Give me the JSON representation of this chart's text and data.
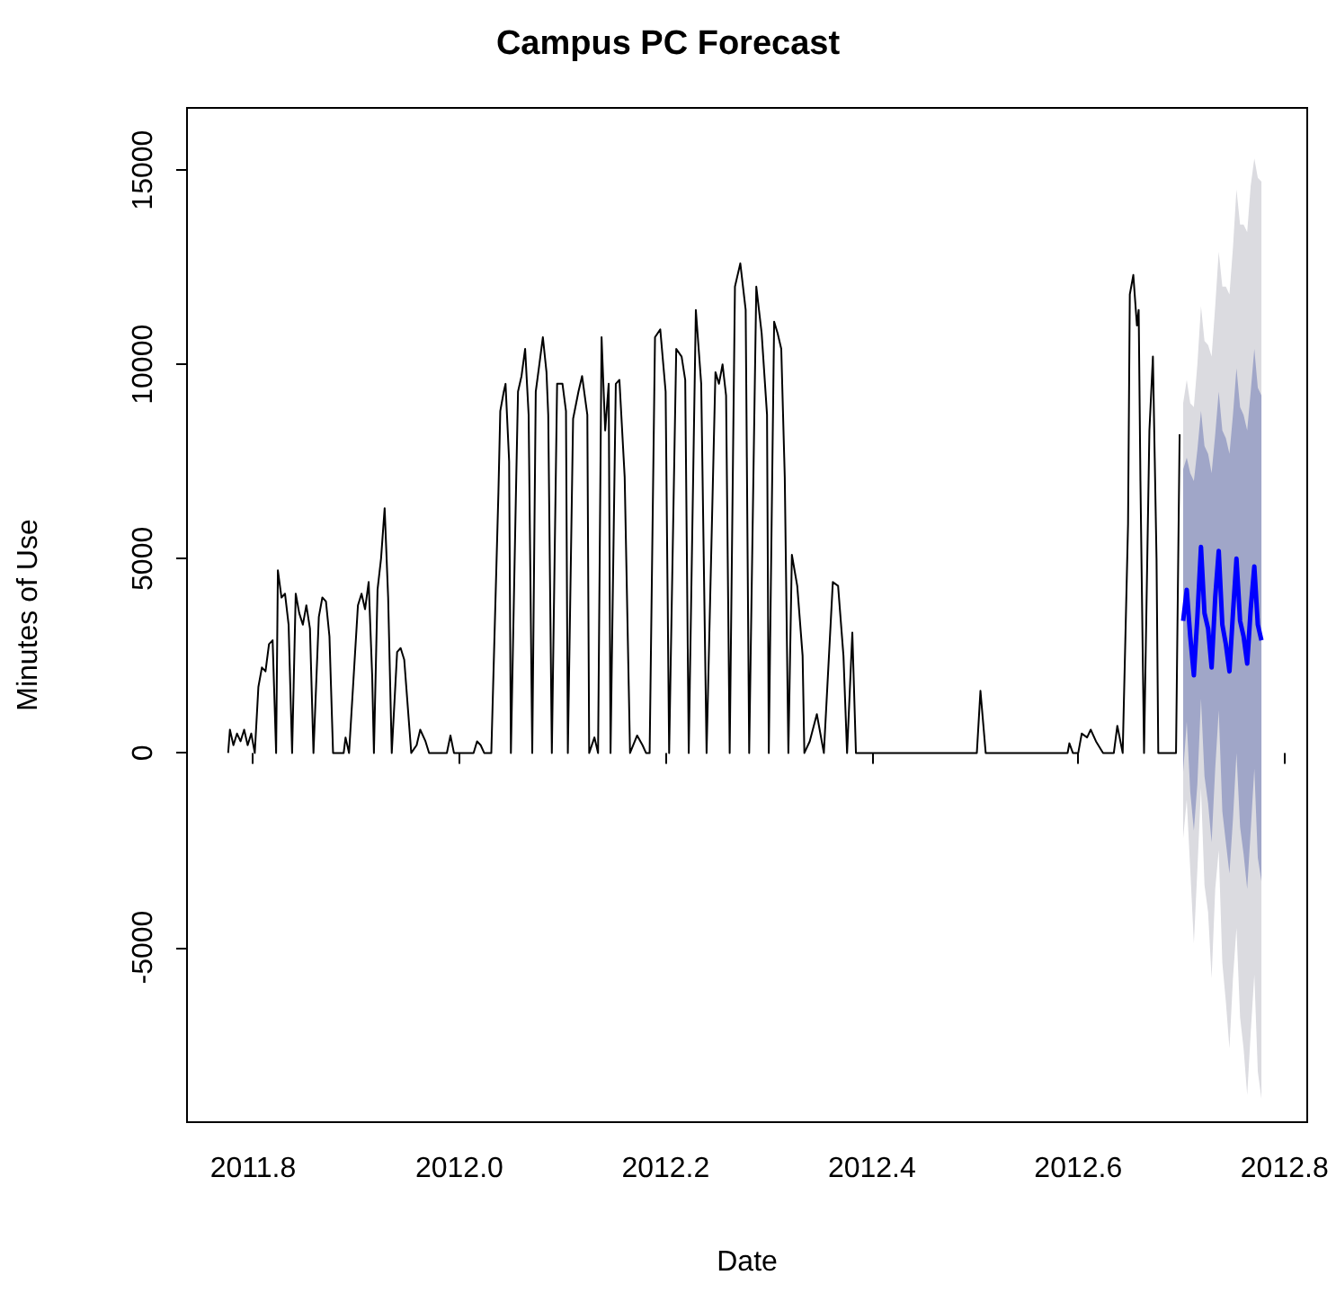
{
  "chart_data": {
    "type": "line",
    "title": "Campus PC Forecast",
    "xlabel": "Date",
    "ylabel": "Minutes of Use",
    "xlim": [
      2011.736,
      2012.822
    ],
    "ylim": [
      -9500,
      16600
    ],
    "xticks": [
      2011.8,
      {
        "value": 2012,
        "label": "2012.0"
      },
      2012.2,
      2012.4,
      2012.6,
      2012.8
    ],
    "yticks": [
      -5000,
      0,
      5000,
      10000,
      15000
    ],
    "grid": false,
    "marker": "none",
    "line_style": "solid",
    "series": [
      {
        "color": "#dbdbe0",
        "x": [
          2012.7017,
          2012.7052,
          2012.7086,
          2012.7121,
          2012.7155,
          2012.719,
          2012.7224,
          2012.7259,
          2012.7293,
          2012.7328,
          2012.7362,
          2012.7397,
          2012.7431,
          2012.7466,
          2012.75,
          2012.7534,
          2012.7569,
          2012.7603,
          2012.7638,
          2012.7672,
          2012.7707,
          2012.7741,
          2012.7776
        ],
        "values": [
          null,
          null,
          null,
          null,
          null,
          null,
          null,
          null,
          null,
          null,
          null,
          null,
          null,
          null,
          null,
          null,
          null,
          null,
          null,
          null,
          null,
          null,
          null
        ],
        "lower": [
          -2200,
          -1200,
          -3000,
          -4900,
          -3000,
          -900,
          -3400,
          -4100,
          -5800,
          -3500,
          -2500,
          -5400,
          -6400,
          -7600,
          -5800,
          -4500,
          -6800,
          -7600,
          -8800,
          -7200,
          -5700,
          -8200,
          -8900
        ],
        "upper": [
          9000,
          9600,
          9000,
          8900,
          10000,
          11500,
          10600,
          10500,
          10200,
          11500,
          12900,
          12000,
          12000,
          11800,
          13000,
          14500,
          13600,
          13600,
          13400,
          14600,
          15300,
          14800,
          14700
        ]
      },
      {
        "color": "#a0a6c8",
        "x": [
          2012.7017,
          2012.7052,
          2012.7086,
          2012.7121,
          2012.7155,
          2012.719,
          2012.7224,
          2012.7259,
          2012.7293,
          2012.7328,
          2012.7362,
          2012.7397,
          2012.7431,
          2012.7466,
          2012.75,
          2012.7534,
          2012.7569,
          2012.7603,
          2012.7638,
          2012.7672,
          2012.7707,
          2012.7741,
          2012.7776
        ],
        "values": [
          null,
          null,
          null,
          null,
          null,
          null,
          null,
          null,
          null,
          null,
          null,
          null,
          null,
          null,
          null,
          null,
          null,
          null,
          null,
          null,
          null,
          null,
          null
        ],
        "lower": [
          -500,
          800,
          -1000,
          -2000,
          -800,
          1400,
          -600,
          -1300,
          -2300,
          -400,
          1100,
          -1500,
          -2300,
          -3100,
          -1700,
          0,
          -1900,
          -2600,
          -3500,
          -2000,
          -400,
          -2700,
          -3300
        ],
        "upper": [
          7300,
          7600,
          7200,
          7000,
          7800,
          8800,
          7900,
          7700,
          7200,
          8200,
          9300,
          8300,
          8100,
          7700,
          8700,
          9900,
          8900,
          8700,
          8300,
          9300,
          10400,
          9400,
          9200
        ]
      },
      {
        "color": "#0000ff",
        "x": [
          2012.7017,
          2012.7052,
          2012.7086,
          2012.7121,
          2012.7155,
          2012.719,
          2012.7224,
          2012.7259,
          2012.7293,
          2012.7328,
          2012.7362,
          2012.7397,
          2012.7431,
          2012.7466,
          2012.75,
          2012.7534,
          2012.7569,
          2012.7603,
          2012.7638,
          2012.7672,
          2012.7707,
          2012.7741,
          2012.7776
        ],
        "values": [
          3400,
          4200,
          3000,
          2000,
          3500,
          5300,
          3600,
          3200,
          2200,
          4000,
          5200,
          3300,
          2800,
          2100,
          3600,
          5000,
          3400,
          3000,
          2300,
          3700,
          4800,
          3300,
          2900
        ]
      },
      {
        "color": "#000000",
        "x": [
          2011.7759,
          2011.7776,
          2011.781,
          2011.7845,
          2011.7879,
          2011.7914,
          2011.7948,
          2011.7983,
          2011.8017,
          2011.8052,
          2011.8086,
          2011.8121,
          2011.8155,
          2011.819,
          2011.8224,
          2011.8241,
          2011.8276,
          2011.831,
          2011.8345,
          2011.8379,
          2011.8414,
          2011.8448,
          2011.8483,
          2011.8517,
          2011.8552,
          2011.8586,
          2011.8638,
          2011.8672,
          2011.8707,
          2011.8741,
          2011.8776,
          2011.8879,
          2011.8897,
          2011.8931,
          2011.9017,
          2011.9052,
          2011.9086,
          2011.9121,
          2011.9155,
          2011.9172,
          2011.9207,
          2011.9241,
          2011.9276,
          2011.931,
          2011.9345,
          2011.9397,
          2011.9431,
          2011.9466,
          2011.95,
          2011.9534,
          2011.9586,
          2011.9621,
          2011.9672,
          2011.9707,
          2011.9879,
          2011.9914,
          2011.9948,
          2012.0138,
          2012.0172,
          2012.0207,
          2012.0241,
          2012.031,
          2012.0379,
          2012.0397,
          2012.0431,
          2012.0448,
          2012.0483,
          2012.05,
          2012.0552,
          2012.0569,
          2012.0603,
          2012.0638,
          2012.0672,
          2012.0707,
          2012.0741,
          2012.0776,
          2012.081,
          2012.0845,
          2012.0862,
          2012.0897,
          2012.0948,
          2012.1,
          2012.1034,
          2012.1052,
          2012.1103,
          2012.1155,
          2012.119,
          2012.1241,
          2012.1259,
          2012.131,
          2012.1345,
          2012.1379,
          2012.1414,
          2012.1448,
          2012.1466,
          2012.1517,
          2012.1552,
          2012.1603,
          2012.1655,
          2012.1724,
          2012.1776,
          2012.181,
          2012.1845,
          2012.1897,
          2012.1948,
          2012.2,
          2012.2034,
          2012.2103,
          2012.2155,
          2012.219,
          2012.2224,
          2012.2293,
          2012.2345,
          2012.2397,
          2012.2483,
          2012.2517,
          2012.2552,
          2012.2586,
          2012.2621,
          2012.2672,
          2012.2724,
          2012.2776,
          2012.281,
          2012.2879,
          2012.2931,
          2012.2983,
          2012.3,
          2012.3052,
          2012.3086,
          2012.3121,
          2012.3155,
          2012.319,
          2012.3224,
          2012.3276,
          2012.3328,
          2012.3345,
          2012.3397,
          2012.3466,
          2012.3534,
          2012.3621,
          2012.3672,
          2012.3724,
          2012.3759,
          2012.381,
          2012.3845,
          2012.5017,
          2012.5052,
          2012.5103,
          2012.5897,
          2012.5914,
          2012.5948,
          2012.6,
          2012.6034,
          2012.6086,
          2012.6121,
          2012.6172,
          2012.6241,
          2012.6345,
          2012.6379,
          2012.6431,
          2012.6483,
          2012.65,
          2012.6534,
          2012.6569,
          2012.6586,
          2012.6603,
          2012.6638,
          2012.669,
          2012.6724,
          2012.6759,
          2012.6776,
          2012.6948,
          2012.6983
        ],
        "values": [
          0,
          600,
          200,
          500,
          300,
          600,
          200,
          500,
          0,
          1700,
          2200,
          2100,
          2800,
          2900,
          0,
          4700,
          4000,
          4100,
          3300,
          0,
          4100,
          3600,
          3300,
          3800,
          3200,
          0,
          3500,
          4000,
          3900,
          3000,
          0,
          0,
          400,
          0,
          3800,
          4100,
          3700,
          4400,
          2000,
          0,
          4200,
          5000,
          6300,
          4000,
          0,
          2600,
          2700,
          2400,
          1200,
          0,
          200,
          600,
          300,
          0,
          0,
          450,
          0,
          0,
          300,
          200,
          0,
          0,
          6700,
          8800,
          9300,
          9500,
          7500,
          0,
          7100,
          9300,
          9700,
          10400,
          8700,
          0,
          9300,
          10000,
          10700,
          9800,
          8700,
          0,
          9500,
          9500,
          8800,
          0,
          8600,
          9300,
          9700,
          8700,
          0,
          400,
          0,
          10700,
          8300,
          9500,
          0,
          9500,
          9600,
          7100,
          0,
          450,
          200,
          0,
          0,
          10700,
          10900,
          9300,
          0,
          10400,
          10200,
          9600,
          0,
          11400,
          9500,
          0,
          9800,
          9500,
          10000,
          9200,
          0,
          12000,
          12600,
          11400,
          0,
          12000,
          10800,
          8700,
          0,
          11100,
          10800,
          10400,
          7100,
          0,
          5100,
          4300,
          2500,
          0,
          300,
          1000,
          0,
          4400,
          4300,
          2500,
          0,
          3100,
          0,
          0,
          1600,
          0,
          0,
          250,
          0,
          0,
          500,
          400,
          600,
          300,
          0,
          0,
          700,
          0,
          5900,
          11800,
          12300,
          11000,
          11400,
          7000,
          0,
          8300,
          10200,
          5000,
          0,
          0,
          8200
        ]
      }
    ]
  }
}
